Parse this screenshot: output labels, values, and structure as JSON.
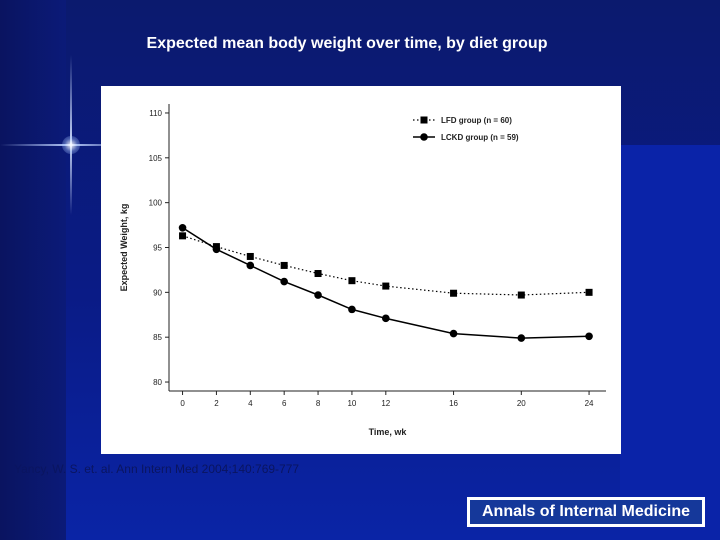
{
  "slide": {
    "title": "Expected mean body weight over time, by diet group",
    "citation": "Yancy, W. S. et. al. Ann Intern Med 2004;140:769-777",
    "journal": "Annals of Internal Medicine"
  },
  "colors": {
    "slide_background": "#0a1b86",
    "panel": "#ffffff",
    "series_line": "#000000",
    "logo_background": "#15389a"
  },
  "chart_data": {
    "type": "line",
    "title": "",
    "xlabel": "Time, wk",
    "ylabel": "Expected Weight, kg",
    "x": [
      0,
      2,
      4,
      6,
      8,
      10,
      12,
      16,
      20,
      24
    ],
    "xticks": [
      0,
      2,
      4,
      6,
      8,
      10,
      12,
      16,
      20,
      24
    ],
    "yticks": [
      80,
      85,
      90,
      95,
      100,
      105,
      110
    ],
    "xlim": [
      -0.8,
      25
    ],
    "ylim": [
      79,
      111
    ],
    "grid": false,
    "legend_position": "top-right",
    "series": [
      {
        "name": "LFD group (n = 60)",
        "marker": "square",
        "line": "dotted",
        "values": [
          96.3,
          95.1,
          94.0,
          93.0,
          92.1,
          91.3,
          90.7,
          89.9,
          89.7,
          90.0
        ]
      },
      {
        "name": "LCKD group (n = 59)",
        "marker": "circle",
        "line": "solid",
        "values": [
          97.2,
          94.8,
          93.0,
          91.2,
          89.7,
          88.1,
          87.1,
          85.4,
          84.9,
          85.1
        ]
      }
    ]
  }
}
